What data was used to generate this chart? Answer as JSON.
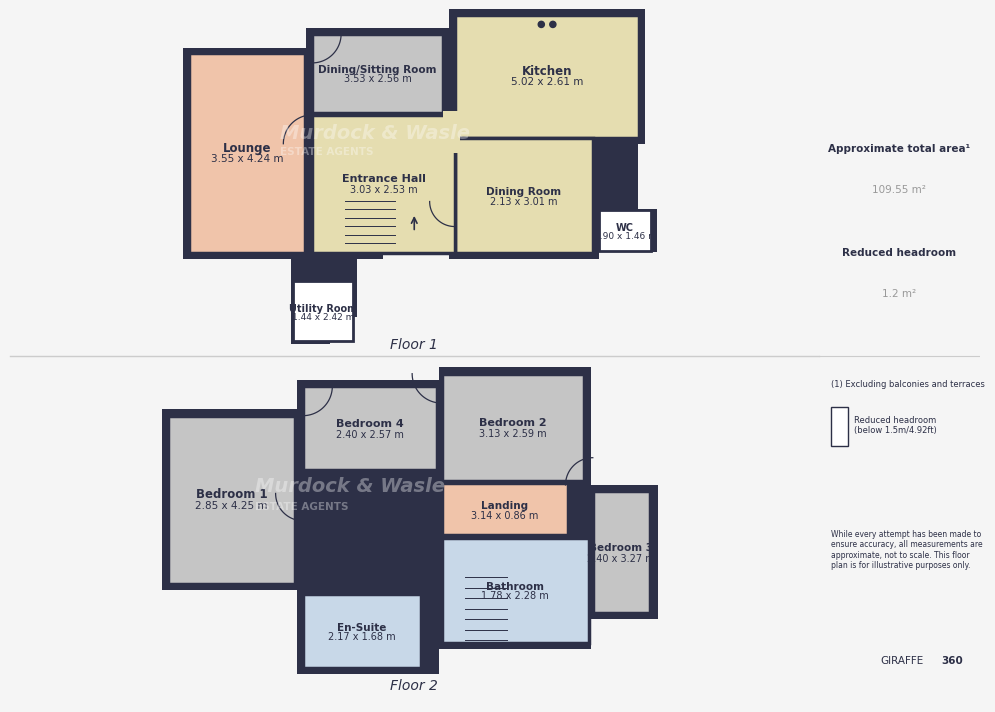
{
  "bg_color": "#f5f5f5",
  "wall_color": "#2d3047",
  "divider_color": "#cccccc",
  "colors": {
    "wall": "#2d3047",
    "lounge_fill": "#f0c4aa",
    "kitchen_fill": "#e5ddb0",
    "dining_sitting_fill": "#c5c5c5",
    "bedroom_fill": "#c5c5c5",
    "bathroom_fill": "#c8d8e8",
    "landing_fill": "#f0c4aa",
    "wc_fill": "#ffffff",
    "entrance_fill": "#e5ddb0",
    "utility_fill": "#ffffff",
    "text_dark": "#2d3047",
    "text_gray": "#999999",
    "divider": "#cccccc",
    "white": "#ffffff"
  },
  "sidebar": {
    "approx_area_label": "Approximate total area",
    "approx_area_sup": "¹",
    "approx_area_value": "109.55 m²",
    "reduced_headroom_label": "Reduced headroom",
    "reduced_headroom_value": "1.2 m²",
    "note1": "(1) Excluding balconies and terraces",
    "note2": "Reduced headroom\n(below 1.5m/4.92ft)",
    "note3": "While every attempt has been made to\nensure accuracy, all measurements are\napproximate, not to scale. This floor\nplan is for illustrative purposes only.",
    "brand_normal": "GIRAFFE",
    "brand_bold": "360"
  },
  "floor1_label": "Floor 1",
  "floor2_label": "Floor 2"
}
